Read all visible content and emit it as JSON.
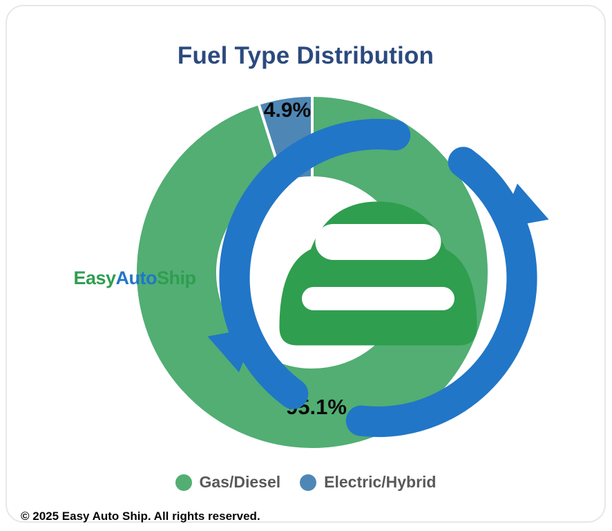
{
  "card": {
    "title": "Fuel Type Distribution",
    "copyright": "© 2025 Easy Auto Ship. All rights reserved."
  },
  "logo": {
    "part1": "Easy",
    "part2": "Auto",
    "part3": "Ship",
    "icon": "car-circular-arrow-icon",
    "green_hex": "#2f9e4f",
    "blue_hex": "#2176c7"
  },
  "chart_data": {
    "type": "pie",
    "donut": true,
    "title": "Fuel Type Distribution",
    "legend_position": "bottom",
    "start_angle_deg": 0,
    "direction": "clockwise",
    "slices": [
      {
        "name": "Gas/Diesel",
        "value": 95.1,
        "label_text": "95.1%",
        "color": "#52ae73"
      },
      {
        "name": "Electric/Hybrid",
        "value": 4.9,
        "label_text": "4.9%",
        "color": "#4e87b5"
      }
    ],
    "slice_border_color": "#ffffff",
    "title_color": "#2b4a7e",
    "legend_text_color": "#58595b"
  }
}
